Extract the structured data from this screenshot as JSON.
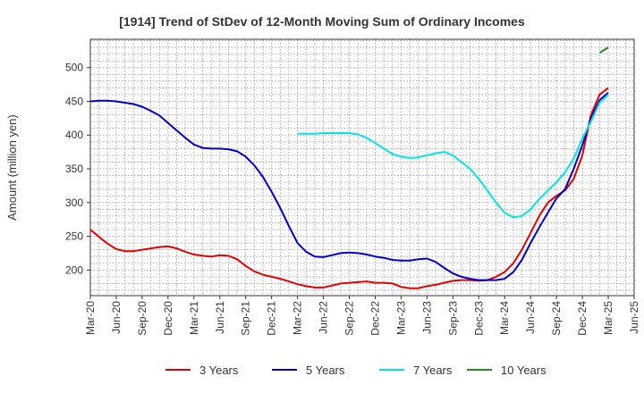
{
  "chart_data": {
    "type": "line",
    "title": "[1914]  Trend of StDev of 12-Month Moving Sum of Ordinary Incomes",
    "ylabel": "Amount (million yen)",
    "xlabel": "",
    "ylim": [
      162,
      542
    ],
    "y_ticks": [
      200,
      250,
      300,
      350,
      400,
      450,
      500
    ],
    "x_tick_labels": [
      "Mar-20",
      "Jun-20",
      "Sep-20",
      "Dec-20",
      "Mar-21",
      "Jun-21",
      "Sep-21",
      "Dec-21",
      "Mar-22",
      "Jun-22",
      "Sep-22",
      "Dec-22",
      "Mar-23",
      "Jun-23",
      "Sep-23",
      "Dec-23",
      "Mar-24",
      "Jun-24",
      "Sep-24",
      "Dec-24",
      "Mar-25",
      "Jun-25"
    ],
    "grid": true,
    "legend_position": "bottom",
    "series": [
      {
        "name": "3 Years",
        "color": "#e60000",
        "x": [
          "2020-03",
          "2020-04",
          "2020-05",
          "2020-06",
          "2020-07",
          "2020-08",
          "2020-09",
          "2020-10",
          "2020-11",
          "2020-12",
          "2021-01",
          "2021-02",
          "2021-03",
          "2021-04",
          "2021-05",
          "2021-06",
          "2021-07",
          "2021-08",
          "2021-09",
          "2021-10",
          "2021-11",
          "2021-12",
          "2022-01",
          "2022-02",
          "2022-03",
          "2022-04",
          "2022-05",
          "2022-06",
          "2022-07",
          "2022-08",
          "2022-09",
          "2022-10",
          "2022-11",
          "2022-12",
          "2023-01",
          "2023-02",
          "2023-03",
          "2023-04",
          "2023-05",
          "2023-06",
          "2023-07",
          "2023-08",
          "2023-09",
          "2023-10",
          "2023-11",
          "2023-12",
          "2024-01",
          "2024-02",
          "2024-03",
          "2024-04",
          "2024-05",
          "2024-06",
          "2024-07",
          "2024-08",
          "2024-09",
          "2024-10",
          "2024-11",
          "2024-12",
          "2025-01",
          "2025-02",
          "2025-03"
        ],
        "values": [
          260,
          249,
          239,
          231,
          228,
          228,
          230,
          232,
          234,
          235,
          232,
          227,
          223,
          221,
          220,
          222,
          221,
          216,
          206,
          198,
          193,
          190,
          187,
          183,
          179,
          176,
          174,
          174,
          177,
          180,
          181,
          182,
          183,
          181,
          181,
          180,
          175,
          173,
          173,
          176,
          178,
          181,
          184,
          185,
          185,
          184,
          185,
          190,
          197,
          210,
          230,
          255,
          280,
          300,
          310,
          318,
          335,
          370,
          430,
          460,
          470
        ]
      },
      {
        "name": "5 Years",
        "color": "#0000cc",
        "x": [
          "2020-03",
          "2020-04",
          "2020-05",
          "2020-06",
          "2020-07",
          "2020-08",
          "2020-09",
          "2020-10",
          "2020-11",
          "2020-12",
          "2021-01",
          "2021-02",
          "2021-03",
          "2021-04",
          "2021-05",
          "2021-06",
          "2021-07",
          "2021-08",
          "2021-09",
          "2021-10",
          "2021-11",
          "2021-12",
          "2022-01",
          "2022-02",
          "2022-03",
          "2022-04",
          "2022-05",
          "2022-06",
          "2022-07",
          "2022-08",
          "2022-09",
          "2022-10",
          "2022-11",
          "2022-12",
          "2023-01",
          "2023-02",
          "2023-03",
          "2023-04",
          "2023-05",
          "2023-06",
          "2023-07",
          "2023-08",
          "2023-09",
          "2023-10",
          "2023-11",
          "2023-12",
          "2024-01",
          "2024-02",
          "2024-03",
          "2024-04",
          "2024-05",
          "2024-06",
          "2024-07",
          "2024-08",
          "2024-09",
          "2024-10",
          "2024-11",
          "2024-12",
          "2025-01",
          "2025-02",
          "2025-03"
        ],
        "values": [
          450,
          451,
          451,
          450,
          448,
          446,
          442,
          436,
          429,
          418,
          407,
          396,
          386,
          381,
          380,
          380,
          379,
          376,
          368,
          355,
          338,
          316,
          292,
          265,
          240,
          227,
          220,
          219,
          222,
          225,
          226,
          225,
          223,
          220,
          218,
          215,
          214,
          214,
          216,
          217,
          212,
          203,
          195,
          190,
          187,
          185,
          185,
          185,
          187,
          197,
          215,
          240,
          263,
          285,
          306,
          320,
          350,
          385,
          425,
          452,
          463
        ]
      },
      {
        "name": "7 Years",
        "color": "#00e5e5",
        "x": [
          "2022-03",
          "2022-04",
          "2022-05",
          "2022-06",
          "2022-07",
          "2022-08",
          "2022-09",
          "2022-10",
          "2022-11",
          "2022-12",
          "2023-01",
          "2023-02",
          "2023-03",
          "2023-04",
          "2023-05",
          "2023-06",
          "2023-07",
          "2023-08",
          "2023-09",
          "2023-10",
          "2023-11",
          "2023-12",
          "2024-01",
          "2024-02",
          "2024-03",
          "2024-04",
          "2024-05",
          "2024-06",
          "2024-07",
          "2024-08",
          "2024-09",
          "2024-10",
          "2024-11",
          "2024-12",
          "2025-01",
          "2025-02",
          "2025-03"
        ],
        "values": [
          402,
          402,
          402,
          403,
          403,
          403,
          403,
          401,
          396,
          388,
          380,
          372,
          368,
          366,
          367,
          370,
          373,
          375,
          370,
          360,
          350,
          335,
          318,
          300,
          285,
          278,
          280,
          290,
          305,
          318,
          330,
          345,
          365,
          395,
          420,
          448,
          460
        ]
      },
      {
        "name": "10 Years",
        "color": "#228b22",
        "x": [
          "2025-02",
          "2025-03"
        ],
        "values": [
          522,
          530
        ]
      }
    ]
  }
}
